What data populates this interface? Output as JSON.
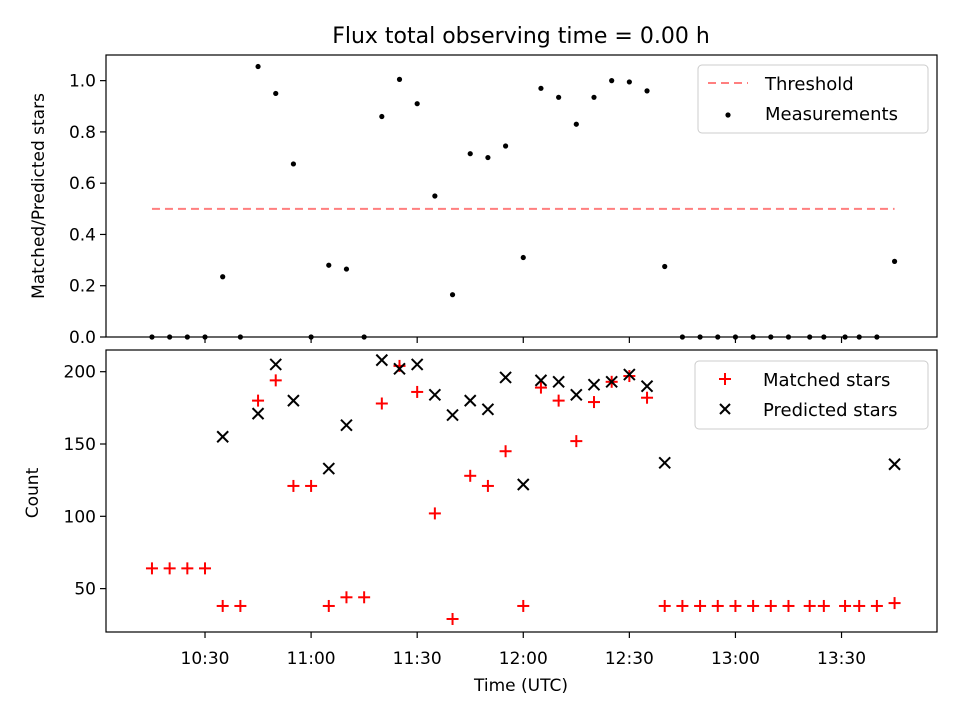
{
  "chart_data": [
    {
      "type": "scatter",
      "title": "Flux total observing time = 0.00 h",
      "xlabel": "",
      "ylabel": "Matched/Predicted stars",
      "ylim": [
        0,
        1.1
      ],
      "yticks": [
        "0.0",
        "0.2",
        "0.4",
        "0.6",
        "0.8",
        "1.0"
      ],
      "legend_position": "top-right",
      "threshold": {
        "name": "Threshold",
        "value": 0.5,
        "x_start": "10:15",
        "x_end": "13:45",
        "color": "#ff7f7f"
      },
      "series": [
        {
          "name": "Measurements",
          "color": "#000000",
          "marker": "dot",
          "x": [
            "10:15",
            "10:20",
            "10:25",
            "10:30",
            "10:35",
            "10:40",
            "10:45",
            "10:50",
            "10:55",
            "11:00",
            "11:05",
            "11:10",
            "11:15",
            "11:20",
            "11:25",
            "11:30",
            "11:35",
            "11:40",
            "11:45",
            "11:50",
            "11:55",
            "12:00",
            "12:05",
            "12:10",
            "12:15",
            "12:20",
            "12:25",
            "12:30",
            "12:35",
            "12:40",
            "12:45",
            "12:50",
            "12:55",
            "13:00",
            "13:05",
            "13:10",
            "13:15",
            "13:21",
            "13:25",
            "13:31",
            "13:35",
            "13:40",
            "13:45"
          ],
          "y": [
            0,
            0,
            0,
            0,
            0.235,
            0,
            1.055,
            0.95,
            0.675,
            0,
            0.28,
            0.265,
            0,
            0.86,
            1.005,
            0.91,
            0.55,
            0.165,
            0.715,
            0.7,
            0.745,
            0.31,
            0.97,
            0.935,
            0.83,
            0.935,
            1.0,
            0.995,
            0.96,
            0.275,
            0,
            0,
            0,
            0,
            0,
            0,
            0,
            0,
            0,
            0,
            0,
            0,
            0.295
          ]
        }
      ]
    },
    {
      "type": "scatter",
      "title": "",
      "xlabel": "Time (UTC)",
      "ylabel": "Count",
      "ylim": [
        20,
        215
      ],
      "yticks": [
        "50",
        "100",
        "150",
        "200"
      ],
      "xticks": [
        "10:30",
        "11:00",
        "11:30",
        "12:00",
        "12:30",
        "13:00",
        "13:30"
      ],
      "legend_position": "top-right",
      "series": [
        {
          "name": "Matched stars",
          "color": "#ff0000",
          "marker": "plus",
          "x": [
            "10:15",
            "10:20",
            "10:25",
            "10:30",
            "10:35",
            "10:40",
            "10:45",
            "10:50",
            "10:55",
            "11:00",
            "11:05",
            "11:10",
            "11:15",
            "11:20",
            "11:25",
            "11:30",
            "11:35",
            "11:40",
            "11:45",
            "11:50",
            "11:55",
            "12:00",
            "12:05",
            "12:10",
            "12:15",
            "12:20",
            "12:25",
            "12:30",
            "12:35",
            "12:40",
            "12:45",
            "12:50",
            "12:55",
            "13:00",
            "13:05",
            "13:10",
            "13:15",
            "13:21",
            "13:25",
            "13:31",
            "13:35",
            "13:40",
            "13:45"
          ],
          "y": [
            64,
            64,
            64,
            64,
            38,
            38,
            180,
            194,
            121,
            121,
            38,
            44,
            44,
            178,
            204,
            186,
            102,
            29,
            128,
            121,
            145,
            38,
            189,
            180,
            152,
            179,
            193,
            197,
            182,
            38,
            38,
            38,
            38,
            38,
            38,
            38,
            38,
            38,
            38,
            38,
            38,
            38,
            40
          ]
        },
        {
          "name": "Predicted stars",
          "color": "#000000",
          "marker": "x",
          "x": [
            "10:35",
            "10:45",
            "10:50",
            "10:55",
            "11:05",
            "11:10",
            "11:20",
            "11:25",
            "11:30",
            "11:35",
            "11:40",
            "11:45",
            "11:50",
            "11:55",
            "12:00",
            "12:05",
            "12:10",
            "12:15",
            "12:20",
            "12:25",
            "12:30",
            "12:35",
            "12:40",
            "13:45"
          ],
          "y": [
            155,
            171,
            205,
            180,
            133,
            163,
            208,
            202,
            205,
            184,
            170,
            180,
            174,
            196,
            122,
            194,
            193,
            184,
            191,
            193,
            198,
            190,
            137,
            136
          ]
        }
      ]
    }
  ]
}
